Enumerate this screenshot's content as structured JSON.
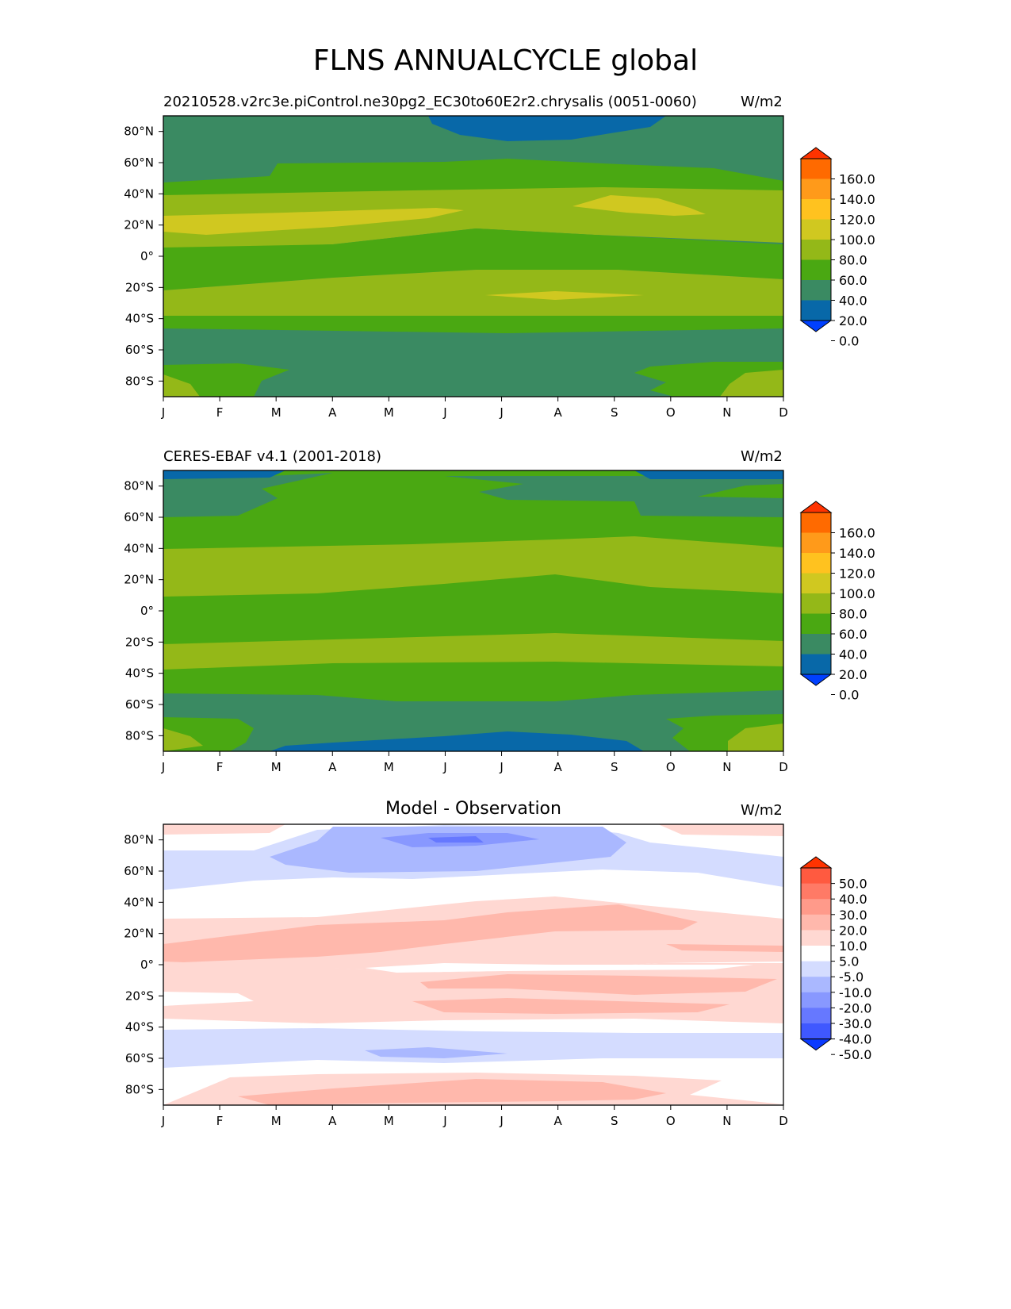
{
  "page": {
    "title": "FLNS ANNUALCYCLE global"
  },
  "chart_data": [
    {
      "type": "heatmap",
      "panel": "test",
      "title": "",
      "subtitle": "20210528.v2rc3e.piControl.ne30pg2_EC30to60E2r2.chrysalis (0051-0060)",
      "units": "W/m2",
      "xlabel": "",
      "ylabel": "",
      "x_ticks": [
        "J",
        "F",
        "M",
        "A",
        "M",
        "J",
        "J",
        "A",
        "S",
        "O",
        "N",
        "D"
      ],
      "y_ticks": [
        "80°N",
        "60°N",
        "40°N",
        "20°N",
        "0°",
        "20°S",
        "40°S",
        "60°S",
        "80°S"
      ],
      "colorbar": {
        "levels": [
          "160.0",
          "140.0",
          "120.0",
          "100.0",
          "80.0",
          "60.0",
          "40.0",
          "20.0",
          "0.0"
        ],
        "colors": [
          "#ff3300",
          "#ff6a00",
          "#ff9a1a",
          "#ffc21f",
          "#d0c820",
          "#94b818",
          "#4aa812",
          "#3a8a62",
          "#0868a8",
          "#0040ff"
        ]
      },
      "latitude_bands": [
        {
          "from": 90,
          "to": 76,
          "value": 30,
          "note_polar_low": true
        },
        {
          "from": 76,
          "to": 60,
          "value": 30
        },
        {
          "from": 60,
          "to": 50,
          "value": 30
        },
        {
          "from": 50,
          "to": 38,
          "value": 50
        },
        {
          "from": 38,
          "to": 28,
          "value": 70
        },
        {
          "from": 28,
          "to": 18,
          "value": 90
        },
        {
          "from": 18,
          "to": 5,
          "value": 70
        },
        {
          "from": 5,
          "to": -12,
          "value": 50
        },
        {
          "from": -12,
          "to": -22,
          "value": 70
        },
        {
          "from": -22,
          "to": -36,
          "value": 70
        },
        {
          "from": -36,
          "to": -46,
          "value": 50
        },
        {
          "from": -46,
          "to": -68,
          "value": 30
        },
        {
          "from": -68,
          "to": -80,
          "value": 30
        },
        {
          "from": -80,
          "to": -90,
          "value": 30
        }
      ]
    },
    {
      "type": "heatmap",
      "panel": "reference",
      "title": "",
      "subtitle": "CERES-EBAF v4.1 (2001-2018)",
      "units": "W/m2",
      "xlabel": "",
      "ylabel": "",
      "x_ticks": [
        "J",
        "F",
        "M",
        "A",
        "M",
        "J",
        "J",
        "A",
        "S",
        "O",
        "N",
        "D"
      ],
      "y_ticks": [
        "80°N",
        "60°N",
        "40°N",
        "20°N",
        "0°",
        "20°S",
        "40°S",
        "60°S",
        "80°S"
      ],
      "colorbar": {
        "levels": [
          "160.0",
          "140.0",
          "120.0",
          "100.0",
          "80.0",
          "60.0",
          "40.0",
          "20.0",
          "0.0"
        ],
        "colors": [
          "#ff3300",
          "#ff6a00",
          "#ff9a1a",
          "#ffc21f",
          "#d0c820",
          "#94b818",
          "#4aa812",
          "#3a8a62",
          "#0868a8",
          "#0040ff"
        ]
      }
    },
    {
      "type": "heatmap",
      "panel": "difference",
      "title": "Model - Observation",
      "units": "W/m2",
      "xlabel": "",
      "ylabel": "",
      "x_ticks": [
        "J",
        "F",
        "M",
        "A",
        "M",
        "J",
        "J",
        "A",
        "S",
        "O",
        "N",
        "D"
      ],
      "y_ticks": [
        "80°N",
        "60°N",
        "40°N",
        "20°N",
        "0°",
        "20°S",
        "40°S",
        "60°S",
        "80°S"
      ],
      "colorbar": {
        "levels": [
          "50.0",
          "40.0",
          "30.0",
          "20.0",
          "10.0",
          "5.0",
          "-5.0",
          "-10.0",
          "-20.0",
          "-30.0",
          "-40.0",
          "-50.0"
        ],
        "colors": [
          "#ff3300",
          "#ff5a40",
          "#ff7a66",
          "#ff9a8a",
          "#ffb8ac",
          "#ffd8d2",
          "#ffffff",
          "#d4dcff",
          "#aab8ff",
          "#8898ff",
          "#6678ff",
          "#3f58ff",
          "#0a3aff"
        ]
      }
    }
  ]
}
